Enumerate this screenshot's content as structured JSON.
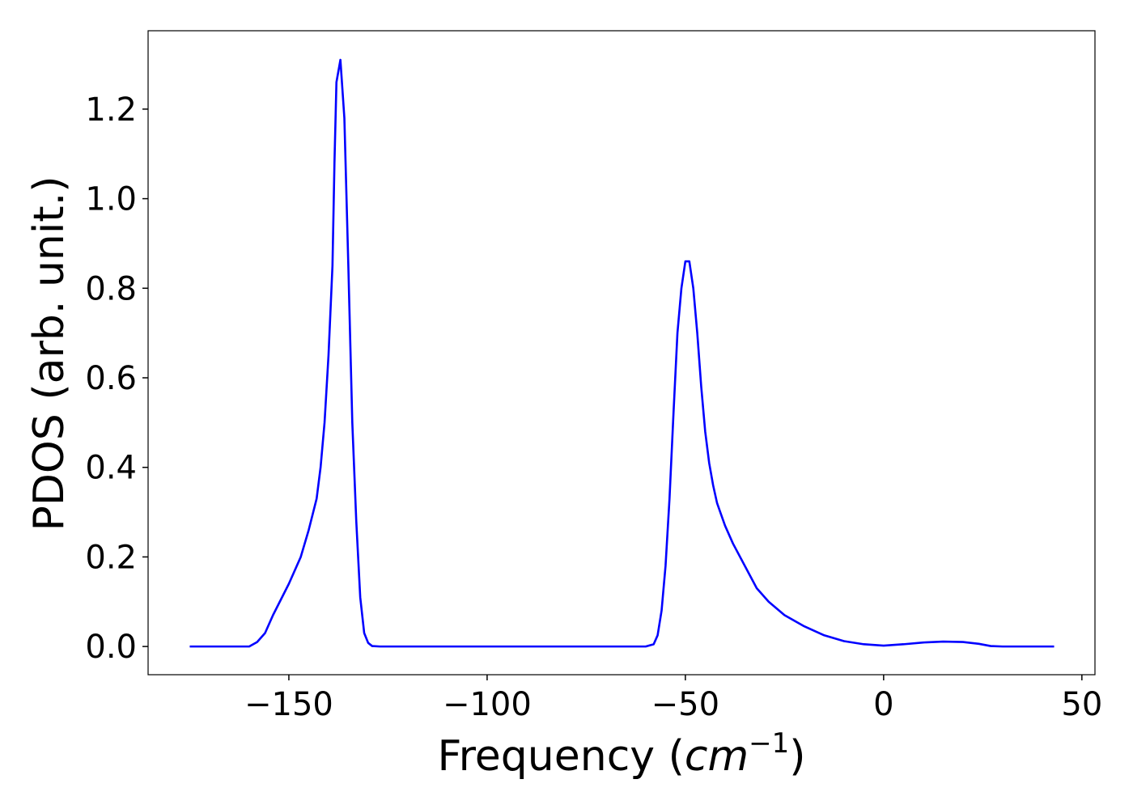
{
  "chart_data": {
    "type": "line",
    "xlabel_parts": [
      "Frequency (",
      "cm",
      "−1",
      ")"
    ],
    "ylabel": "PDOS (arb. unit.)",
    "xlim": [
      -185.5,
      53.3
    ],
    "ylim": [
      -0.063,
      1.375
    ],
    "xticks": [
      {
        "value": -150,
        "label": "−150"
      },
      {
        "value": -100,
        "label": "−100"
      },
      {
        "value": -50,
        "label": "−50"
      },
      0,
      50
    ],
    "yticks": [
      {
        "value": 0,
        "label": "0.0"
      },
      0.2,
      0.4,
      0.6,
      0.8,
      {
        "value": 1,
        "label": "1.0"
      },
      1.2
    ],
    "grid": false,
    "series": [
      {
        "color": "#0000ff",
        "x": [
          -175,
          -160,
          -158,
          -156,
          -154,
          -150,
          -147,
          -145,
          -143,
          -142,
          -141,
          -140,
          -139,
          -138.5,
          -138,
          -137,
          -136,
          -135,
          -134,
          -133,
          -132,
          -131,
          -130,
          -129,
          -127,
          -100,
          -60,
          -58,
          -57,
          -56,
          -55,
          -54,
          -53,
          -52,
          -51,
          -50,
          -49,
          -48,
          -47,
          -46,
          -45,
          -44,
          -43,
          -42,
          -40,
          -38,
          -35,
          -32,
          -29,
          -25,
          -20,
          -15,
          -10,
          -5,
          0,
          5,
          10,
          15,
          20,
          24,
          27,
          30,
          43
        ],
        "values": [
          0,
          0,
          0.01,
          0.03,
          0.07,
          0.14,
          0.2,
          0.26,
          0.33,
          0.4,
          0.5,
          0.65,
          0.85,
          1.08,
          1.26,
          1.31,
          1.18,
          0.85,
          0.5,
          0.28,
          0.11,
          0.03,
          0.008,
          0.001,
          0,
          0,
          0,
          0.005,
          0.025,
          0.08,
          0.18,
          0.33,
          0.52,
          0.7,
          0.8,
          0.86,
          0.86,
          0.8,
          0.7,
          0.58,
          0.48,
          0.41,
          0.36,
          0.32,
          0.27,
          0.23,
          0.18,
          0.13,
          0.1,
          0.07,
          0.045,
          0.025,
          0.012,
          0.005,
          0.002,
          0.005,
          0.009,
          0.011,
          0.01,
          0.006,
          0.001,
          0,
          0
        ]
      }
    ]
  }
}
